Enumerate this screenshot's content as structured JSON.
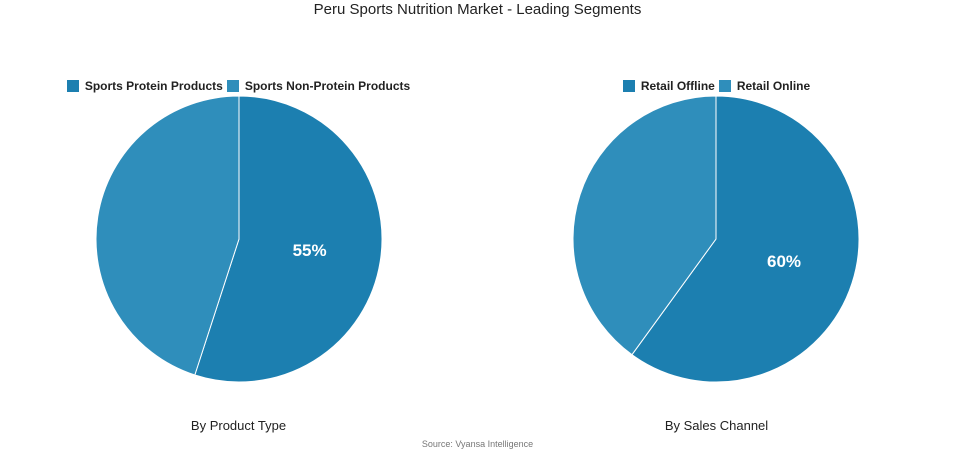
{
  "title": "Peru Sports Nutrition Market - Leading Segments",
  "source": "Source: Vyansa Intelligence",
  "colors": {
    "primary": "#1c7fb0",
    "secondary": "#2f8ebb"
  },
  "chart_data": [
    {
      "type": "pie",
      "caption": "By Product Type",
      "legend": [
        "Sports Protein Products",
        "Sports Non-Protein Products"
      ],
      "values": [
        55,
        45
      ],
      "labels": [
        "55%",
        ""
      ]
    },
    {
      "type": "pie",
      "caption": "By Sales Channel",
      "legend": [
        "Retail Offline",
        "Retail Online"
      ],
      "values": [
        60,
        40
      ],
      "labels": [
        "60%",
        ""
      ]
    }
  ]
}
